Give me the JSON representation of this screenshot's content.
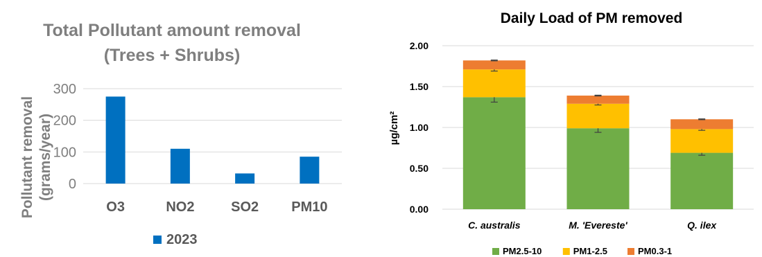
{
  "chart_data": [
    {
      "type": "bar",
      "title": "Total Pollutant amount removal",
      "subtitle": "(Trees + Shrubs)",
      "ylabel_line1": "Pollutant removal",
      "ylabel_line2": "(grams/year)",
      "xlabel": "",
      "categories": [
        "O3",
        "NO2",
        "SO2",
        "PM10"
      ],
      "series": [
        {
          "name": "2023",
          "values": [
            275,
            110,
            32,
            85
          ],
          "color": "#0070C0"
        }
      ],
      "ylim": [
        0,
        300
      ],
      "yticks": [
        0,
        100,
        200,
        300
      ],
      "grid": true,
      "legend_position": "bottom"
    },
    {
      "type": "bar",
      "stacked": true,
      "title": "Daily Load of PM removed",
      "ylabel": "µg/cm²",
      "xlabel": "",
      "categories": [
        "C. australis",
        "M. 'Evereste'",
        "Q. ilex"
      ],
      "series": [
        {
          "name": "PM2.5-10",
          "values": [
            1.37,
            0.99,
            0.69
          ],
          "errors": [
            0.06,
            0.05,
            0.03
          ],
          "color": "#70AD47"
        },
        {
          "name": "PM1-2.5",
          "values": [
            0.34,
            0.3,
            0.29
          ],
          "errors": [
            0.02,
            0.015,
            0.015
          ],
          "color": "#FFC000"
        },
        {
          "name": "PM0.3-1",
          "values": [
            0.11,
            0.1,
            0.12
          ],
          "errors": [
            0.005,
            0.005,
            0.005
          ],
          "color": "#ED7D31"
        }
      ],
      "ylim": [
        0,
        2
      ],
      "yticks": [
        "0.00",
        "0.50",
        "1.00",
        "1.50",
        "2.00"
      ],
      "grid": true,
      "legend_position": "bottom"
    }
  ]
}
